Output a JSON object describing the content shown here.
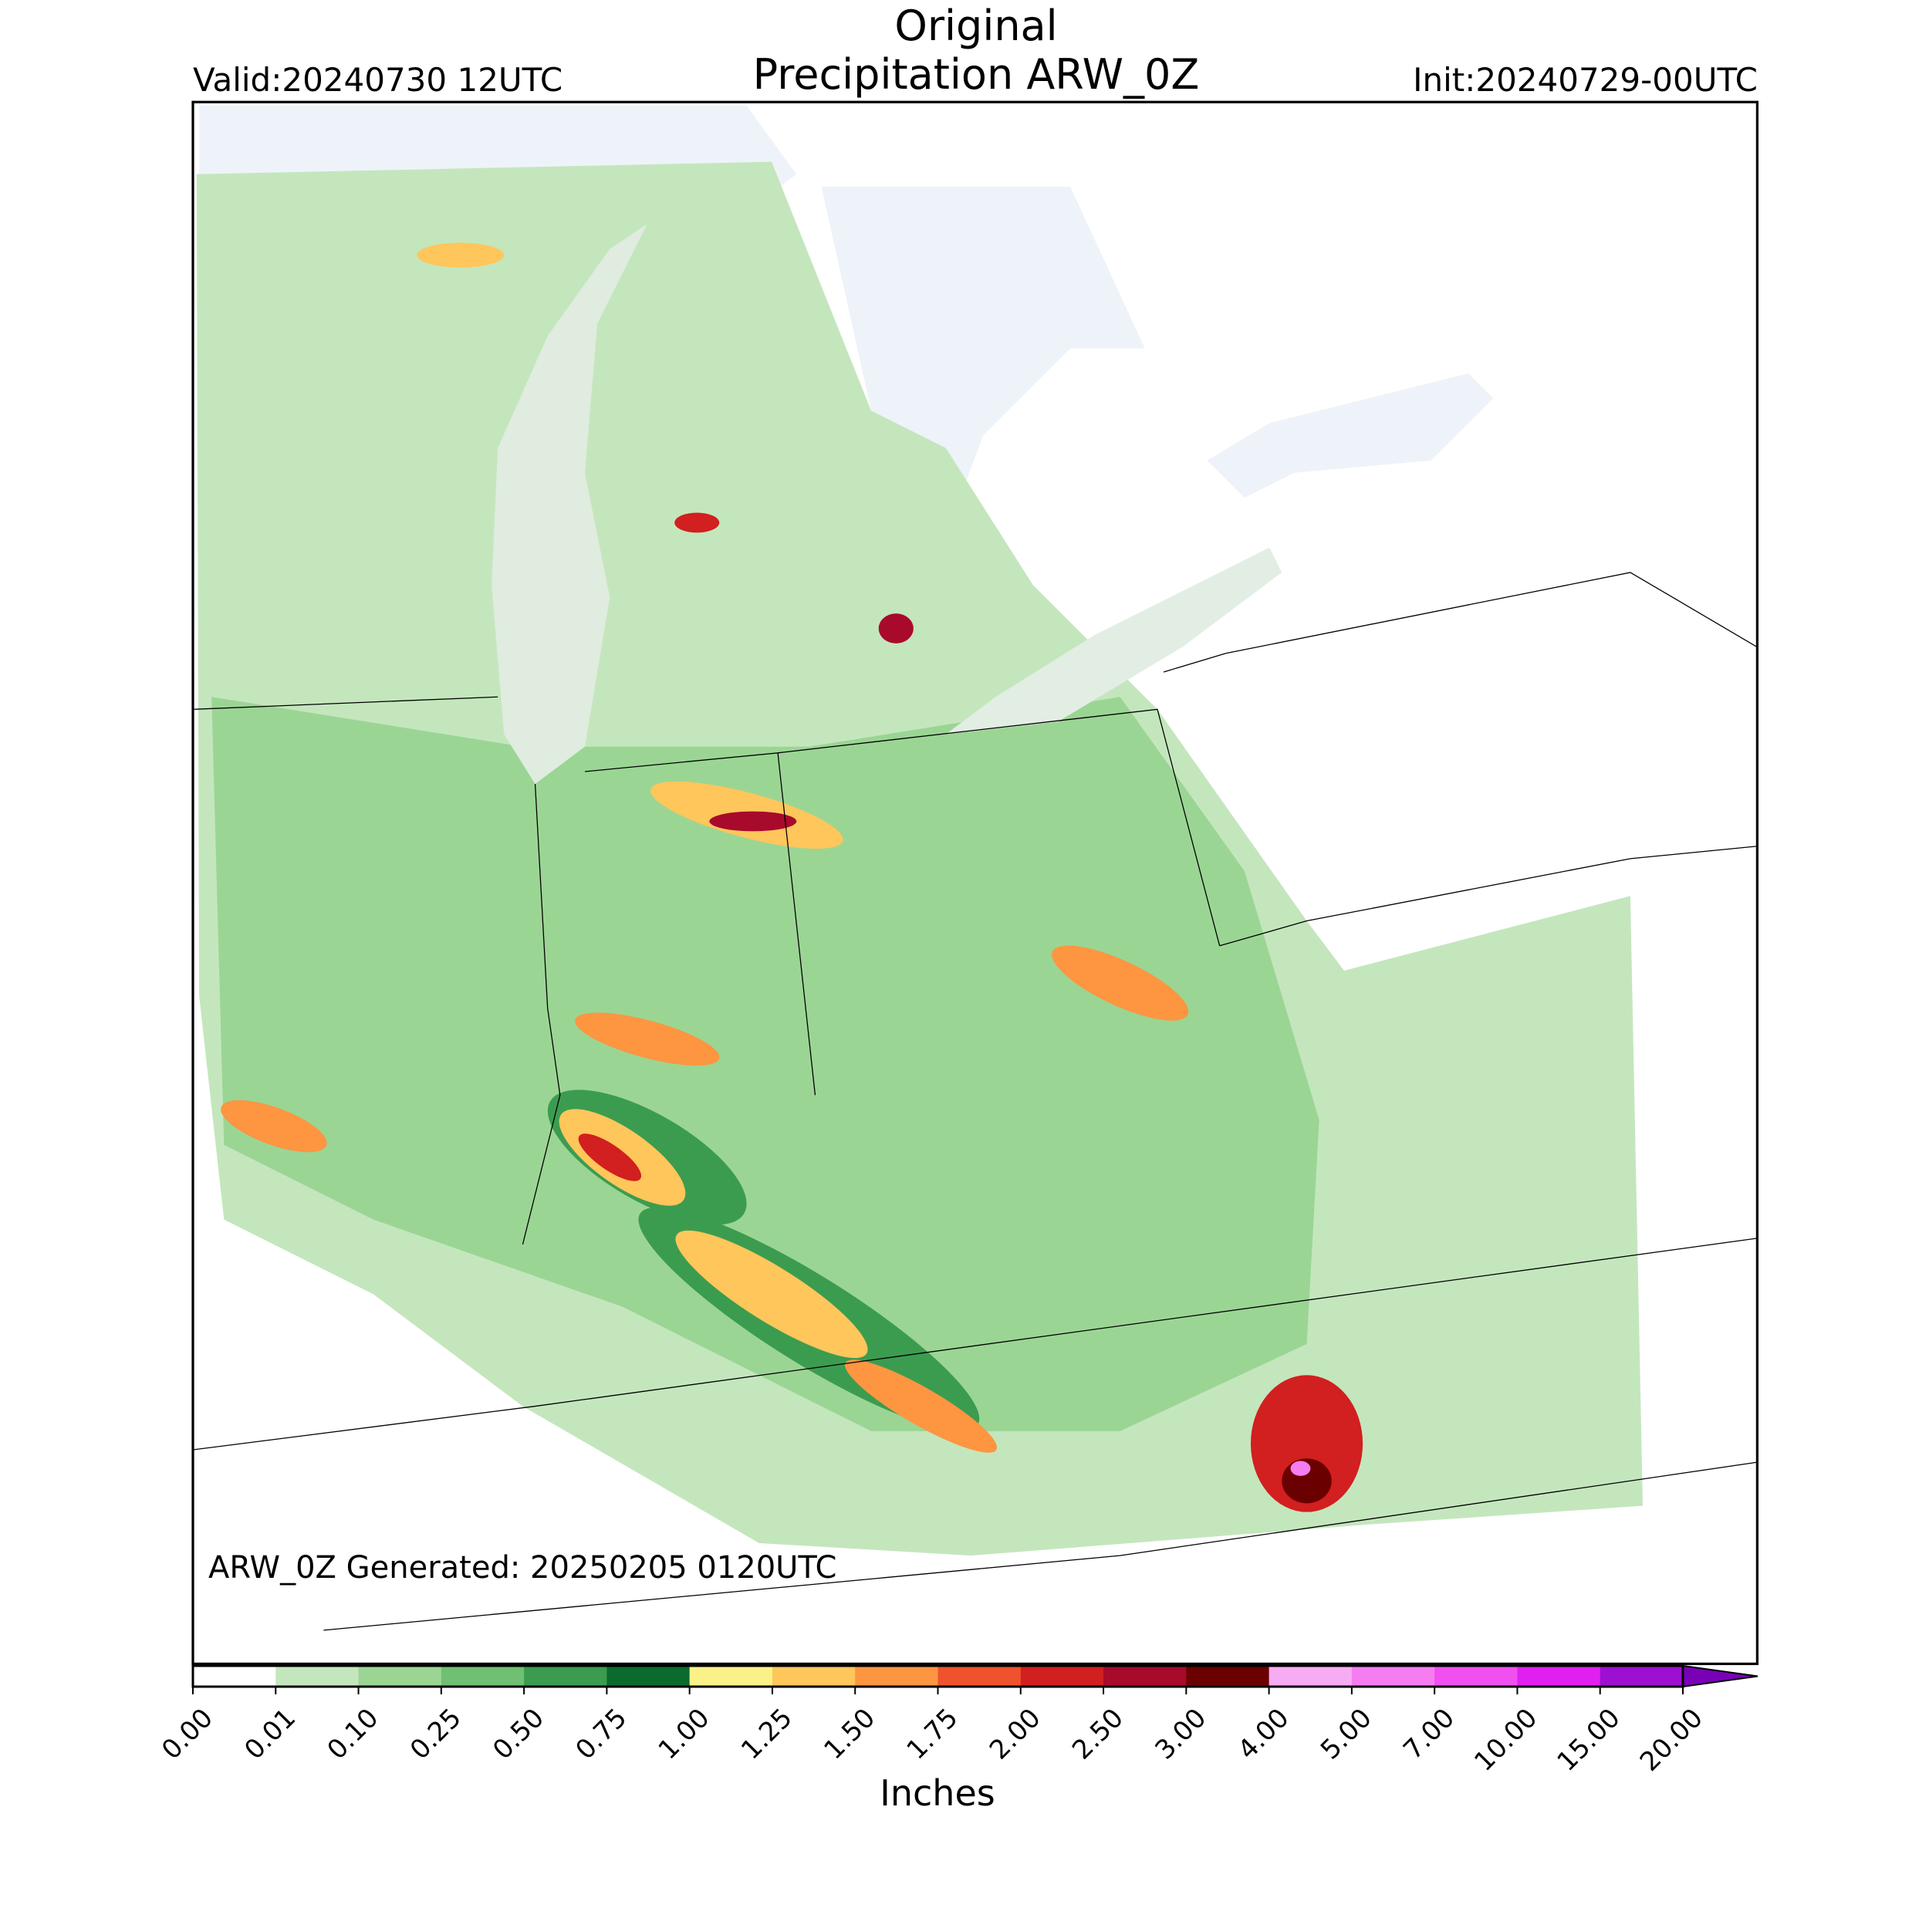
{
  "header": {
    "title_line1": "Original",
    "title_line2": "Precipitation ARW_0Z",
    "valid": "Valid:20240730 12UTC",
    "init": "Init:20240729-00UTC"
  },
  "footer": {
    "generated": "ARW_0Z Generated: 20250205 0120UTC"
  },
  "colorbar": {
    "label": "Inches",
    "ticks": [
      {
        "value": 0,
        "label": "0.00"
      },
      {
        "value": 0.01,
        "label": "0.01"
      },
      {
        "value": 0.1,
        "label": "0.10"
      },
      {
        "value": 0.25,
        "label": "0.25"
      },
      {
        "value": 0.5,
        "label": "0.50"
      },
      {
        "value": 0.75,
        "label": "0.75"
      },
      {
        "value": 1,
        "label": "1.00"
      },
      {
        "value": 1.25,
        "label": "1.25"
      },
      {
        "value": 1.5,
        "label": "1.50"
      },
      {
        "value": 1.75,
        "label": "1.75"
      },
      {
        "value": 2,
        "label": "2.00"
      },
      {
        "value": 2.5,
        "label": "2.50"
      },
      {
        "value": 3,
        "label": "3.00"
      },
      {
        "value": 4,
        "label": "4.00"
      },
      {
        "value": 5,
        "label": "5.00"
      },
      {
        "value": 7,
        "label": "7.00"
      },
      {
        "value": 10,
        "label": "10.00"
      },
      {
        "value": 15,
        "label": "15.00"
      },
      {
        "value": 20,
        "label": "20.00"
      }
    ],
    "colors": [
      "#ffffff",
      "#c4e6bd",
      "#9bd594",
      "#6fc072",
      "#3b9c50",
      "#0b6b2f",
      "#fbf189",
      "#fec65b",
      "#fd9541",
      "#ef532d",
      "#d21f1f",
      "#a80a2b",
      "#6b0000",
      "#f7abf3",
      "#f57df1",
      "#ef50ef",
      "#e020f0",
      "#9e10d0"
    ],
    "extend_color": "#7a00b8"
  }
}
